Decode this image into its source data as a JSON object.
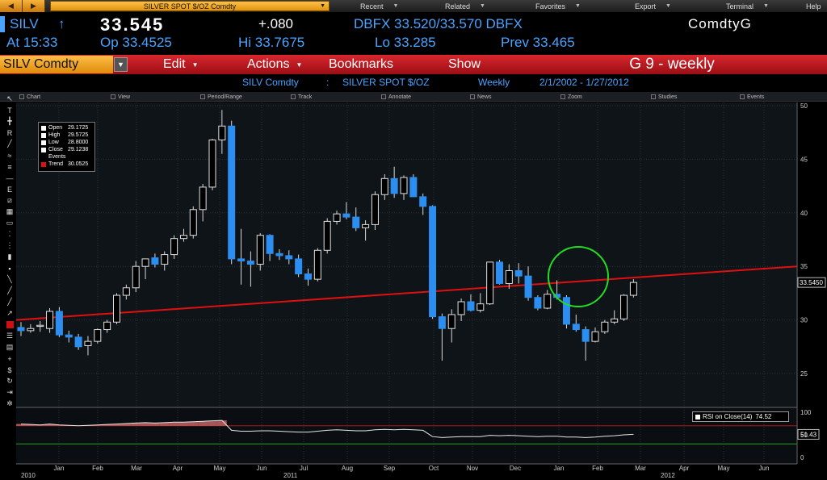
{
  "topbar": {
    "back_glyph": "◀",
    "forward_glyph": "▶",
    "security_title": "SILVER SPOT $/OZ Comdty",
    "menus": [
      {
        "label": "Recent"
      },
      {
        "label": "Related"
      },
      {
        "label": "Favorites"
      },
      {
        "label": "Export"
      },
      {
        "label": "Terminal"
      },
      {
        "label": "Help"
      }
    ]
  },
  "ticker": {
    "symbol": "SILV",
    "arrow": "↑",
    "price": "33.545",
    "change": "+.080",
    "dbfx": "DBFX 33.520/33.570 DBFX",
    "screen_name": "ComdtyG",
    "at": "At 15:33",
    "open": "Op 33.4525",
    "high": "Hi 33.7675",
    "low": "Lo 33.285",
    "prev": "Prev 33.465"
  },
  "functionbar": {
    "security": "SILV Comdty",
    "items": [
      {
        "label": "Edit"
      },
      {
        "label": "Actions"
      },
      {
        "label": "Bookmarks"
      },
      {
        "label": "Show"
      }
    ],
    "page_title": "G 9 - weekly"
  },
  "subtitle": {
    "ticker": "SILV Comdty",
    "separator": ":",
    "name": "SILVER SPOT $/OZ",
    "period": "Weekly",
    "range": "2/1/2002 - 1/27/2012"
  },
  "chart_toolbar": [
    {
      "label": "Chart"
    },
    {
      "label": "View"
    },
    {
      "label": "Period/Range"
    },
    {
      "label": "Track"
    },
    {
      "label": "Annotate"
    },
    {
      "label": "News"
    },
    {
      "label": "Zoom"
    },
    {
      "label": "Studies"
    },
    {
      "label": "Events"
    }
  ],
  "legend": {
    "rows": [
      {
        "label": "Open",
        "value": "29.1725",
        "color": "#ffffff"
      },
      {
        "label": "High",
        "value": "29.5725",
        "color": "#ffffff"
      },
      {
        "label": "Low",
        "value": "28.8000",
        "color": "#ffffff"
      },
      {
        "label": "Close",
        "value": "29.1238",
        "color": "#ffffff"
      },
      {
        "label": "Events",
        "value": "",
        "color": ""
      },
      {
        "label": "Trend",
        "value": "30.0525",
        "color": "#e01010"
      }
    ]
  },
  "rsi": {
    "label": "RSI on Close(14)",
    "value": "74.52",
    "last_tag": "51.43",
    "axis": [
      "100",
      "50",
      "0"
    ]
  },
  "colors": {
    "up_candle": "#000000",
    "down_candle": "#2b8ef0",
    "trendline": "#e01010",
    "highlight_circle": "#22dd22",
    "accent_orange": "#f2a42a",
    "red_bar": "#c41b21",
    "ticker_blue": "#4aa3ff"
  },
  "chart_data": {
    "type": "candlestick",
    "period": "weekly",
    "y_axis": {
      "min": 22,
      "max": 50,
      "ticks": [
        "50",
        "45",
        "40",
        "35",
        "30",
        "25"
      ]
    },
    "last_price_tag": "33.5450",
    "x_axis": {
      "months": [
        "Jan",
        "Feb",
        "Mar",
        "Apr",
        "May",
        "Jun",
        "Jul",
        "Aug",
        "Sep",
        "Oct",
        "Nov",
        "Dec",
        "Jan",
        "Feb",
        "Mar",
        "Apr",
        "May",
        "Jun"
      ],
      "years": [
        "2010",
        "2011",
        "2012"
      ]
    },
    "trendline": {
      "start": 30.0,
      "end": 35.0
    },
    "candles": [
      {
        "o": 29.3,
        "h": 29.8,
        "l": 28.5,
        "c": 29.0
      },
      {
        "o": 29.0,
        "h": 29.6,
        "l": 28.8,
        "c": 29.2
      },
      {
        "o": 29.4,
        "h": 29.9,
        "l": 28.9,
        "c": 29.5
      },
      {
        "o": 29.2,
        "h": 31.1,
        "l": 28.8,
        "c": 30.8
      },
      {
        "o": 30.8,
        "h": 31.2,
        "l": 28.4,
        "c": 28.6
      },
      {
        "o": 28.6,
        "h": 29.0,
        "l": 27.9,
        "c": 28.4
      },
      {
        "o": 28.4,
        "h": 28.7,
        "l": 27.2,
        "c": 27.5
      },
      {
        "o": 27.6,
        "h": 28.5,
        "l": 26.7,
        "c": 28.0
      },
      {
        "o": 28.0,
        "h": 29.2,
        "l": 27.8,
        "c": 29.1
      },
      {
        "o": 29.1,
        "h": 30.0,
        "l": 28.8,
        "c": 29.8
      },
      {
        "o": 29.8,
        "h": 32.5,
        "l": 29.6,
        "c": 32.3
      },
      {
        "o": 32.3,
        "h": 33.3,
        "l": 31.9,
        "c": 33.0
      },
      {
        "o": 33.0,
        "h": 35.5,
        "l": 32.6,
        "c": 35.0
      },
      {
        "o": 35.0,
        "h": 35.7,
        "l": 33.8,
        "c": 35.7
      },
      {
        "o": 35.8,
        "h": 36.2,
        "l": 34.9,
        "c": 35.2
      },
      {
        "o": 35.2,
        "h": 36.4,
        "l": 34.6,
        "c": 36.1
      },
      {
        "o": 36.1,
        "h": 37.9,
        "l": 35.7,
        "c": 37.6
      },
      {
        "o": 37.6,
        "h": 38.5,
        "l": 37.3,
        "c": 37.9
      },
      {
        "o": 37.9,
        "h": 40.6,
        "l": 37.6,
        "c": 40.3
      },
      {
        "o": 40.3,
        "h": 42.7,
        "l": 39.2,
        "c": 42.4
      },
      {
        "o": 42.4,
        "h": 46.9,
        "l": 42.1,
        "c": 46.8
      },
      {
        "o": 46.8,
        "h": 49.6,
        "l": 45.5,
        "c": 48.1
      },
      {
        "o": 48.1,
        "h": 48.6,
        "l": 35.2,
        "c": 35.7
      },
      {
        "o": 35.7,
        "h": 38.5,
        "l": 33.3,
        "c": 35.5
      },
      {
        "o": 35.5,
        "h": 36.4,
        "l": 33.1,
        "c": 35.2
      },
      {
        "o": 35.2,
        "h": 38.1,
        "l": 34.6,
        "c": 37.9
      },
      {
        "o": 37.9,
        "h": 38.0,
        "l": 35.5,
        "c": 36.2
      },
      {
        "o": 36.2,
        "h": 36.6,
        "l": 35.6,
        "c": 36.0
      },
      {
        "o": 36.0,
        "h": 36.5,
        "l": 35.2,
        "c": 35.7
      },
      {
        "o": 35.7,
        "h": 36.1,
        "l": 34.0,
        "c": 34.3
      },
      {
        "o": 34.3,
        "h": 34.8,
        "l": 33.2,
        "c": 33.8
      },
      {
        "o": 33.8,
        "h": 36.7,
        "l": 33.6,
        "c": 36.5
      },
      {
        "o": 36.5,
        "h": 39.5,
        "l": 36.2,
        "c": 39.2
      },
      {
        "o": 39.2,
        "h": 40.2,
        "l": 38.9,
        "c": 39.9
      },
      {
        "o": 39.9,
        "h": 41.0,
        "l": 39.4,
        "c": 39.6
      },
      {
        "o": 39.6,
        "h": 40.5,
        "l": 38.3,
        "c": 38.6
      },
      {
        "o": 38.6,
        "h": 39.3,
        "l": 37.4,
        "c": 38.9
      },
      {
        "o": 38.9,
        "h": 42.0,
        "l": 38.4,
        "c": 41.7
      },
      {
        "o": 41.7,
        "h": 43.6,
        "l": 41.2,
        "c": 43.2
      },
      {
        "o": 43.2,
        "h": 44.3,
        "l": 41.4,
        "c": 41.8
      },
      {
        "o": 41.8,
        "h": 43.5,
        "l": 41.2,
        "c": 43.3
      },
      {
        "o": 43.3,
        "h": 43.6,
        "l": 41.5,
        "c": 41.5
      },
      {
        "o": 41.5,
        "h": 41.8,
        "l": 39.8,
        "c": 40.6
      },
      {
        "o": 40.6,
        "h": 40.7,
        "l": 30.1,
        "c": 30.3
      },
      {
        "o": 30.3,
        "h": 30.6,
        "l": 26.2,
        "c": 29.2
      },
      {
        "o": 29.2,
        "h": 31.0,
        "l": 27.9,
        "c": 30.5
      },
      {
        "o": 30.5,
        "h": 32.0,
        "l": 29.9,
        "c": 31.7
      },
      {
        "o": 31.7,
        "h": 32.4,
        "l": 30.8,
        "c": 30.9
      },
      {
        "o": 30.9,
        "h": 32.5,
        "l": 30.7,
        "c": 31.5
      },
      {
        "o": 31.5,
        "h": 35.4,
        "l": 31.4,
        "c": 35.4
      },
      {
        "o": 35.4,
        "h": 35.6,
        "l": 33.3,
        "c": 33.4
      },
      {
        "o": 33.4,
        "h": 35.2,
        "l": 32.9,
        "c": 34.6
      },
      {
        "o": 34.6,
        "h": 35.3,
        "l": 33.4,
        "c": 34.1
      },
      {
        "o": 34.1,
        "h": 35.0,
        "l": 31.8,
        "c": 32.1
      },
      {
        "o": 32.1,
        "h": 32.3,
        "l": 30.9,
        "c": 31.1
      },
      {
        "o": 31.1,
        "h": 32.8,
        "l": 31.0,
        "c": 32.4
      },
      {
        "o": 32.4,
        "h": 33.7,
        "l": 31.9,
        "c": 32.1
      },
      {
        "o": 32.1,
        "h": 32.3,
        "l": 29.2,
        "c": 29.6
      },
      {
        "o": 29.6,
        "h": 30.5,
        "l": 28.9,
        "c": 29.1
      },
      {
        "o": 29.1,
        "h": 29.4,
        "l": 26.2,
        "c": 28.0
      },
      {
        "o": 28.0,
        "h": 29.3,
        "l": 27.9,
        "c": 28.9
      },
      {
        "o": 28.9,
        "h": 30.0,
        "l": 28.7,
        "c": 29.8
      },
      {
        "o": 29.8,
        "h": 30.9,
        "l": 29.6,
        "c": 30.1
      },
      {
        "o": 30.1,
        "h": 32.4,
        "l": 29.9,
        "c": 32.3
      },
      {
        "o": 32.3,
        "h": 33.8,
        "l": 32.1,
        "c": 33.5
      }
    ],
    "rsi_series": [
      74,
      73,
      72,
      74,
      72,
      71,
      70,
      71,
      72,
      73,
      74,
      75,
      76,
      77,
      76,
      77,
      78,
      78,
      79,
      80,
      81,
      82,
      60,
      58,
      58,
      59,
      59,
      58,
      57,
      56,
      56,
      58,
      60,
      61,
      60,
      59,
      59,
      61,
      62,
      61,
      62,
      61,
      60,
      46,
      44,
      45,
      46,
      46,
      46,
      49,
      48,
      49,
      48,
      47,
      46,
      47,
      47,
      45,
      45,
      44,
      45,
      47,
      48,
      50,
      51
    ]
  }
}
